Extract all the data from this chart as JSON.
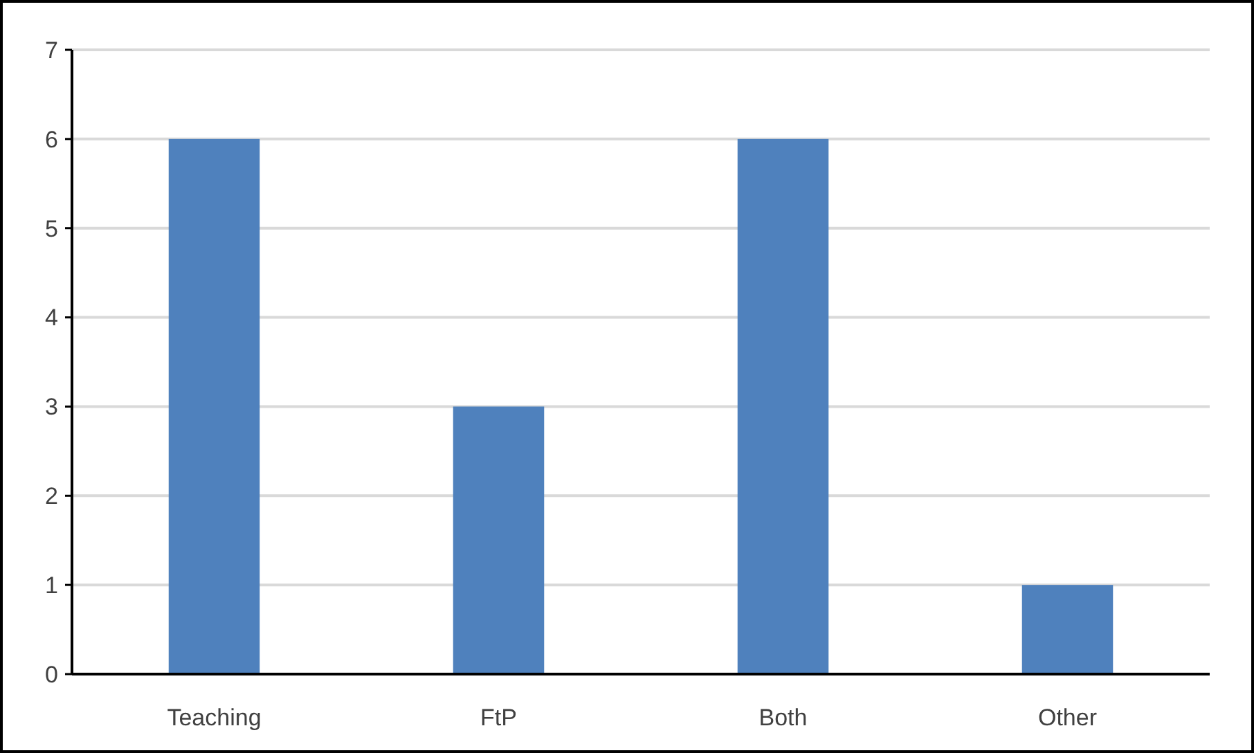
{
  "chart_data": {
    "type": "bar",
    "categories": [
      "Teaching",
      "FtP",
      "Both",
      "Other"
    ],
    "values": [
      6,
      3,
      6,
      1
    ],
    "color": "#4f81bd",
    "ylim": [
      0,
      7
    ],
    "yticks": [
      0,
      1,
      2,
      3,
      4,
      5,
      6,
      7
    ],
    "grid": "y"
  }
}
